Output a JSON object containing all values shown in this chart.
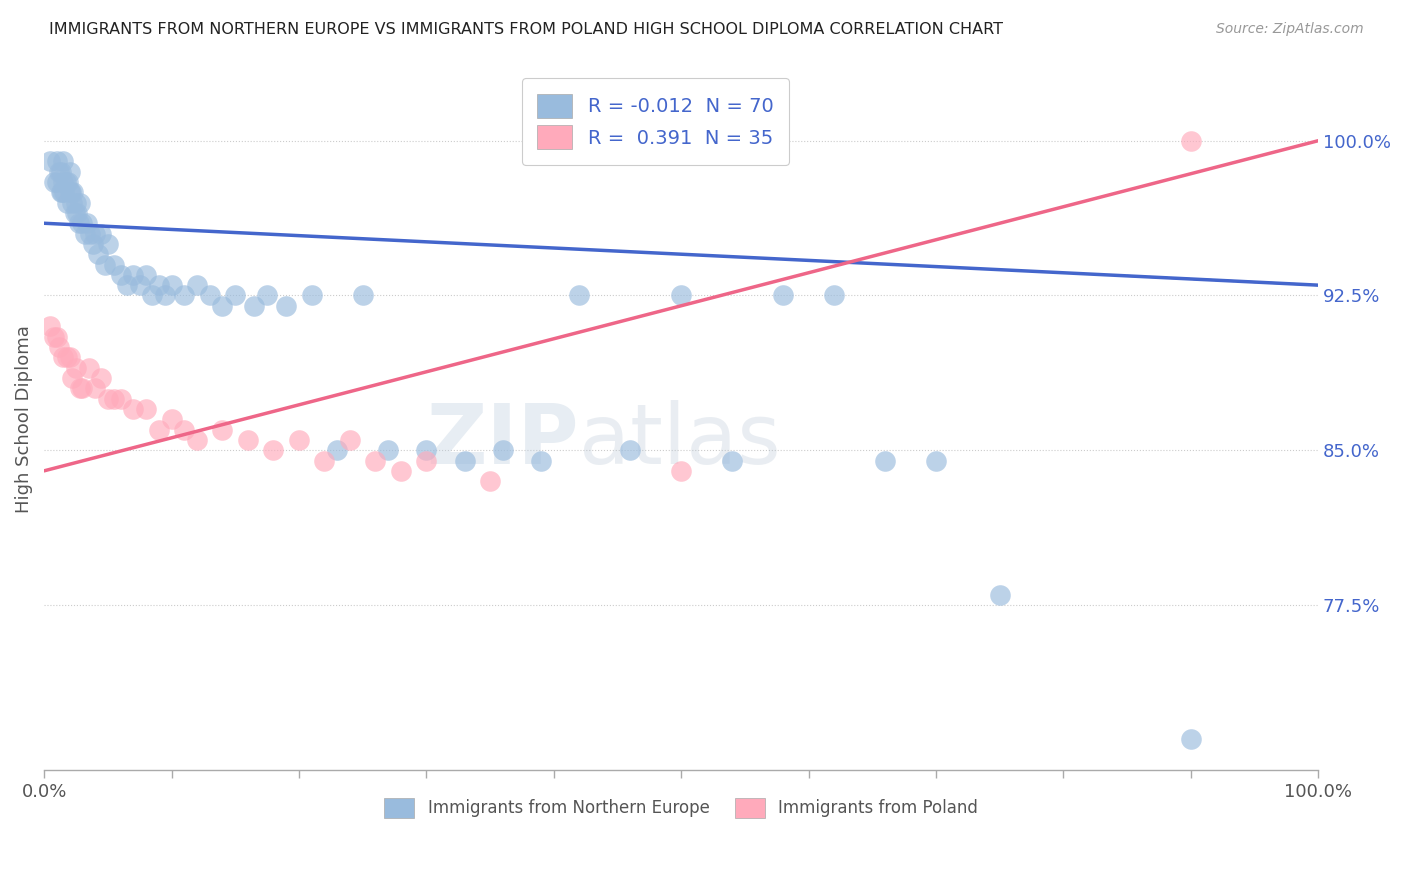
{
  "title": "IMMIGRANTS FROM NORTHERN EUROPE VS IMMIGRANTS FROM POLAND HIGH SCHOOL DIPLOMA CORRELATION CHART",
  "source": "Source: ZipAtlas.com",
  "ylabel": "High School Diploma",
  "yticks": [
    0.775,
    0.85,
    0.925,
    1.0
  ],
  "ytick_labels": [
    "77.5%",
    "85.0%",
    "92.5%",
    "100.0%"
  ],
  "xlim": [
    0.0,
    1.0
  ],
  "ylim": [
    0.695,
    1.035
  ],
  "legend1_label": "R = -0.012  N = 70",
  "legend2_label": "R =  0.391  N = 35",
  "legend_title1": "Immigrants from Northern Europe",
  "legend_title2": "Immigrants from Poland",
  "blue_color": "#99BBDD",
  "pink_color": "#FFAABB",
  "blue_line_color": "#4466CC",
  "pink_line_color": "#EE6688",
  "blue_x": [
    0.005,
    0.008,
    0.01,
    0.01,
    0.012,
    0.013,
    0.013,
    0.014,
    0.015,
    0.015,
    0.016,
    0.017,
    0.018,
    0.019,
    0.02,
    0.02,
    0.021,
    0.022,
    0.023,
    0.024,
    0.025,
    0.026,
    0.027,
    0.028,
    0.03,
    0.032,
    0.034,
    0.036,
    0.038,
    0.04,
    0.042,
    0.045,
    0.048,
    0.05,
    0.055,
    0.06,
    0.065,
    0.07,
    0.075,
    0.08,
    0.085,
    0.09,
    0.095,
    0.1,
    0.11,
    0.12,
    0.13,
    0.14,
    0.15,
    0.165,
    0.175,
    0.19,
    0.21,
    0.23,
    0.25,
    0.27,
    0.3,
    0.33,
    0.36,
    0.39,
    0.42,
    0.46,
    0.5,
    0.54,
    0.58,
    0.62,
    0.66,
    0.7,
    0.75,
    0.9
  ],
  "blue_y": [
    0.99,
    0.98,
    0.99,
    0.98,
    0.985,
    0.975,
    0.985,
    0.975,
    0.98,
    0.99,
    0.975,
    0.98,
    0.97,
    0.98,
    0.975,
    0.985,
    0.975,
    0.97,
    0.975,
    0.965,
    0.97,
    0.965,
    0.96,
    0.97,
    0.96,
    0.955,
    0.96,
    0.955,
    0.95,
    0.955,
    0.945,
    0.955,
    0.94,
    0.95,
    0.94,
    0.935,
    0.93,
    0.935,
    0.93,
    0.935,
    0.925,
    0.93,
    0.925,
    0.93,
    0.925,
    0.93,
    0.925,
    0.92,
    0.925,
    0.92,
    0.925,
    0.92,
    0.925,
    0.85,
    0.925,
    0.85,
    0.85,
    0.845,
    0.85,
    0.845,
    0.925,
    0.85,
    0.925,
    0.845,
    0.925,
    0.925,
    0.845,
    0.845,
    0.78,
    0.71
  ],
  "pink_x": [
    0.005,
    0.008,
    0.01,
    0.012,
    0.015,
    0.018,
    0.02,
    0.022,
    0.025,
    0.028,
    0.03,
    0.035,
    0.04,
    0.045,
    0.05,
    0.055,
    0.06,
    0.07,
    0.08,
    0.09,
    0.1,
    0.11,
    0.12,
    0.14,
    0.16,
    0.18,
    0.2,
    0.22,
    0.24,
    0.26,
    0.28,
    0.3,
    0.35,
    0.5,
    0.9
  ],
  "pink_y": [
    0.91,
    0.905,
    0.905,
    0.9,
    0.895,
    0.895,
    0.895,
    0.885,
    0.89,
    0.88,
    0.88,
    0.89,
    0.88,
    0.885,
    0.875,
    0.875,
    0.875,
    0.87,
    0.87,
    0.86,
    0.865,
    0.86,
    0.855,
    0.86,
    0.855,
    0.85,
    0.855,
    0.845,
    0.855,
    0.845,
    0.84,
    0.845,
    0.835,
    0.84,
    1.0
  ],
  "blue_trend_x": [
    0.0,
    1.0
  ],
  "blue_trend_y": [
    0.96,
    0.93
  ],
  "pink_trend_x": [
    0.0,
    1.0
  ],
  "pink_trend_y": [
    0.84,
    1.0
  ],
  "xtick_positions": [
    0.0,
    0.1,
    0.2,
    0.3,
    0.4,
    0.5,
    0.6,
    0.7,
    0.8,
    0.9,
    1.0
  ]
}
